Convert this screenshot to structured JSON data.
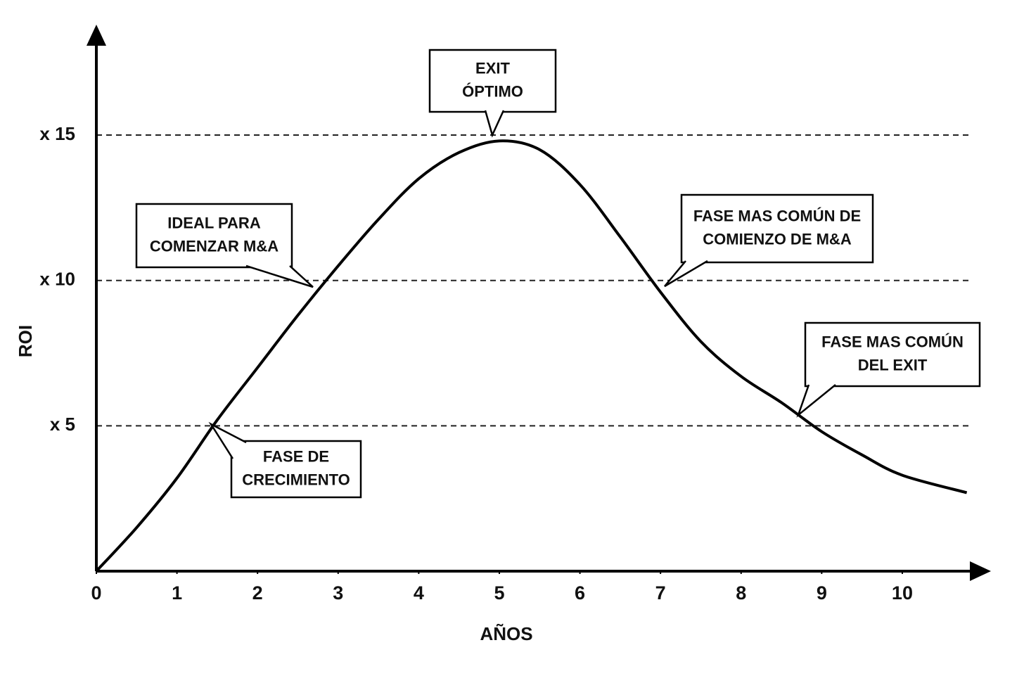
{
  "chart_data": {
    "type": "line",
    "x_label": "AÑOS",
    "y_label": "ROI",
    "xlim": [
      0,
      11.1
    ],
    "ylim": [
      0,
      18.8
    ],
    "xticks": [
      0,
      1,
      2,
      3,
      4,
      5,
      6,
      7,
      8,
      9,
      10
    ],
    "yticks": [
      {
        "value": 5,
        "label": "x 5"
      },
      {
        "value": 10,
        "label": "x 10"
      },
      {
        "value": 15,
        "label": "x 15"
      }
    ],
    "grid": "dashed",
    "color": "#000000",
    "x": [
      0,
      0.5,
      1,
      1.5,
      2,
      2.5,
      3,
      3.5,
      4,
      4.5,
      5,
      5.5,
      6,
      6.5,
      7,
      7.5,
      8,
      8.5,
      9,
      9.5,
      10,
      10.8
    ],
    "values": [
      0,
      1.5,
      3.2,
      5.2,
      7.0,
      8.8,
      10.5,
      12.1,
      13.5,
      14.4,
      14.8,
      14.5,
      13.3,
      11.5,
      9.6,
      7.9,
      6.7,
      5.8,
      4.8,
      4.0,
      3.3,
      2.7
    ],
    "annotations": [
      {
        "lines": [
          "EXIT",
          "ÓPTIMO"
        ]
      },
      {
        "lines": [
          "IDEAL PARA",
          "COMENZAR M&A"
        ]
      },
      {
        "lines": [
          "FASE MAS COMÚN DE",
          "COMIENZO DE M&A"
        ]
      },
      {
        "lines": [
          "FASE MAS COMÚN",
          "DEL EXIT"
        ]
      },
      {
        "lines": [
          "FASE DE",
          "CRECIMIENTO"
        ]
      }
    ]
  }
}
